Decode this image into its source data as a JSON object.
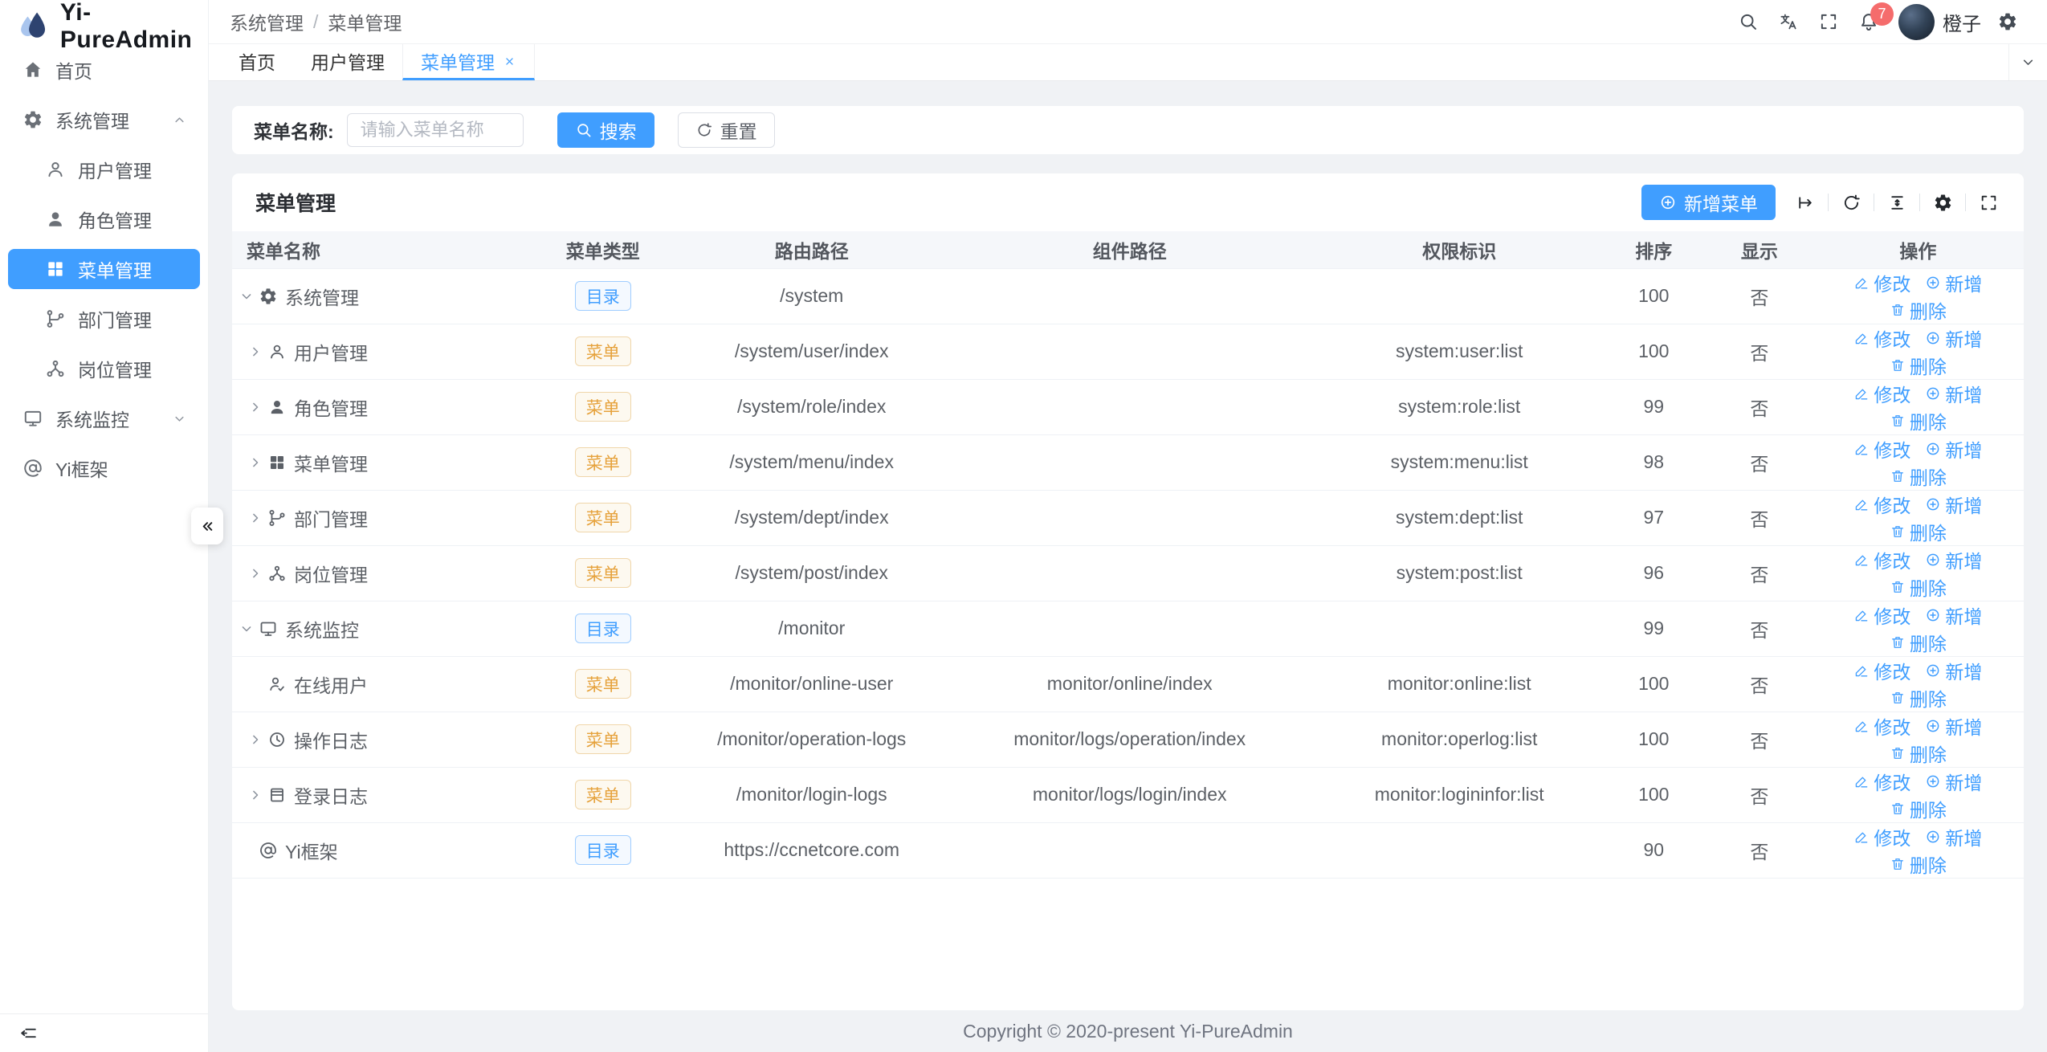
{
  "app": {
    "name": "Yi-PureAdmin"
  },
  "sidebar": {
    "items": [
      {
        "id": "home",
        "icon": "home",
        "label": "首页",
        "level": 0
      },
      {
        "id": "system",
        "icon": "gear",
        "label": "系统管理",
        "level": 0,
        "chevron": "up"
      },
      {
        "id": "user",
        "icon": "user",
        "label": "用户管理",
        "level": 1
      },
      {
        "id": "role",
        "icon": "user-solid",
        "label": "角色管理",
        "level": 1
      },
      {
        "id": "menu",
        "icon": "grid",
        "label": "菜单管理",
        "level": 1,
        "active": true
      },
      {
        "id": "dept",
        "icon": "dept",
        "label": "部门管理",
        "level": 1
      },
      {
        "id": "post",
        "icon": "post",
        "label": "岗位管理",
        "level": 1
      },
      {
        "id": "monitor",
        "icon": "monitor",
        "label": "系统监控",
        "level": 0,
        "chevron": "down"
      },
      {
        "id": "yi",
        "icon": "at",
        "label": "Yi框架",
        "level": 0
      }
    ],
    "collapse_icon": "double-left",
    "fold_icon": "fold-menu"
  },
  "header": {
    "breadcrumb": [
      "系统管理",
      "菜单管理"
    ],
    "separator": "/",
    "icons": [
      "search",
      "translate",
      "fullscreen",
      "bell"
    ],
    "notification_count": "7",
    "user_name": "橙子",
    "settings_icon": "gear"
  },
  "tabs": [
    {
      "id": "home",
      "label": "首页"
    },
    {
      "id": "user",
      "label": "用户管理"
    },
    {
      "id": "menu",
      "label": "菜单管理",
      "active": true,
      "closable": true
    }
  ],
  "search": {
    "label": "菜单名称:",
    "placeholder": "请输入菜单名称",
    "search_label": "搜索",
    "reset_label": "重置"
  },
  "table_card": {
    "title": "菜单管理",
    "add_button": "新增菜单",
    "toolbar_icons": [
      "arrow-bar-right",
      "refresh",
      "density",
      "gear",
      "fullscreen"
    ]
  },
  "table": {
    "columns": [
      {
        "label": "菜单名称"
      },
      {
        "label": "菜单类型"
      },
      {
        "label": "路由路径"
      },
      {
        "label": "组件路径"
      },
      {
        "label": "权限标识"
      },
      {
        "label": "排序"
      },
      {
        "label": "显示"
      },
      {
        "label": "操作"
      }
    ],
    "action_labels": {
      "edit": "修改",
      "add": "新增",
      "del": "删除"
    },
    "rows": [
      {
        "level": 0,
        "expand": "open",
        "icon": "gear",
        "name": "系统管理",
        "type": "目录",
        "type_style": "dir",
        "route": "/system",
        "component": "",
        "perm": "",
        "sort": "100",
        "visible": "否"
      },
      {
        "level": 1,
        "expand": "closed",
        "icon": "user",
        "name": "用户管理",
        "type": "菜单",
        "type_style": "menu",
        "route": "/system/user/index",
        "component": "",
        "perm": "system:user:list",
        "sort": "100",
        "visible": "否"
      },
      {
        "level": 1,
        "expand": "closed",
        "icon": "user-solid",
        "name": "角色管理",
        "type": "菜单",
        "type_style": "menu",
        "route": "/system/role/index",
        "component": "",
        "perm": "system:role:list",
        "sort": "99",
        "visible": "否"
      },
      {
        "level": 1,
        "expand": "closed",
        "icon": "grid",
        "name": "菜单管理",
        "type": "菜单",
        "type_style": "menu",
        "route": "/system/menu/index",
        "component": "",
        "perm": "system:menu:list",
        "sort": "98",
        "visible": "否"
      },
      {
        "level": 1,
        "expand": "closed",
        "icon": "dept",
        "name": "部门管理",
        "type": "菜单",
        "type_style": "menu",
        "route": "/system/dept/index",
        "component": "",
        "perm": "system:dept:list",
        "sort": "97",
        "visible": "否"
      },
      {
        "level": 1,
        "expand": "closed",
        "icon": "post",
        "name": "岗位管理",
        "type": "菜单",
        "type_style": "menu",
        "route": "/system/post/index",
        "component": "",
        "perm": "system:post:list",
        "sort": "96",
        "visible": "否"
      },
      {
        "level": 0,
        "expand": "open",
        "icon": "monitor",
        "name": "系统监控",
        "type": "目录",
        "type_style": "dir",
        "route": "/monitor",
        "component": "",
        "perm": "",
        "sort": "99",
        "visible": "否"
      },
      {
        "level": 1,
        "expand": "none",
        "icon": "online-user",
        "name": "在线用户",
        "type": "菜单",
        "type_style": "menu",
        "route": "/monitor/online-user",
        "component": "monitor/online/index",
        "perm": "monitor:online:list",
        "sort": "100",
        "visible": "否"
      },
      {
        "level": 1,
        "expand": "closed",
        "icon": "clock",
        "name": "操作日志",
        "type": "菜单",
        "type_style": "menu",
        "route": "/monitor/operation-logs",
        "component": "monitor/logs/operation/index",
        "perm": "monitor:operlog:list",
        "sort": "100",
        "visible": "否"
      },
      {
        "level": 1,
        "expand": "closed",
        "icon": "login-log",
        "name": "登录日志",
        "type": "菜单",
        "type_style": "menu",
        "route": "/monitor/login-logs",
        "component": "monitor/logs/login/index",
        "perm": "monitor:logininfor:list",
        "sort": "100",
        "visible": "否"
      },
      {
        "level": 0,
        "expand": "none",
        "icon": "at",
        "name": "Yi框架",
        "type": "目录",
        "type_style": "dir",
        "route": "https://ccnetcore.com",
        "component": "",
        "perm": "",
        "sort": "90",
        "visible": "否"
      }
    ]
  },
  "footer": {
    "copyright": "Copyright © 2020-present Yi-PureAdmin"
  },
  "colors": {
    "primary": "#409eff",
    "badge_red": "#f56c6c",
    "menu_orange": "#e6a23c",
    "content_bg": "#f0f2f5"
  }
}
